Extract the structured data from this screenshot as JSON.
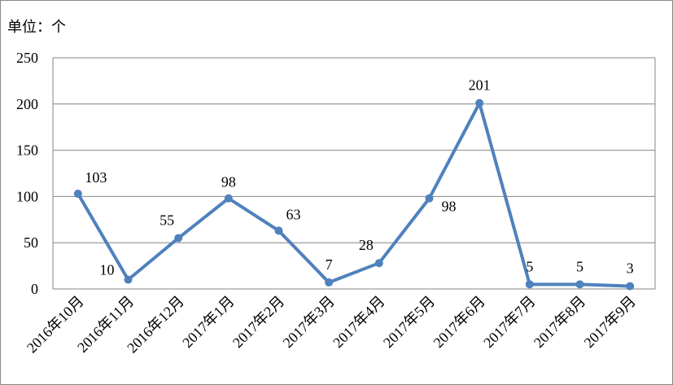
{
  "unit_label": "单位：个",
  "chart_data": {
    "type": "line",
    "title": "",
    "xlabel": "",
    "ylabel": "",
    "ylim": [
      0,
      250
    ],
    "yticks": [
      0,
      50,
      100,
      150,
      200,
      250
    ],
    "grid": true,
    "legend": "none",
    "categories": [
      "2016年10月",
      "2016年11月",
      "2016年12月",
      "2017年1月",
      "2017年2月",
      "2017年3月",
      "2017年4月",
      "2017年5月",
      "2017年6月",
      "2017年7月",
      "2017年8月",
      "2017年9月"
    ],
    "series": [
      {
        "values": [
          103,
          10,
          55,
          98,
          63,
          7,
          28,
          98,
          201,
          5,
          5,
          3
        ],
        "color": "#4f81bd"
      }
    ]
  }
}
